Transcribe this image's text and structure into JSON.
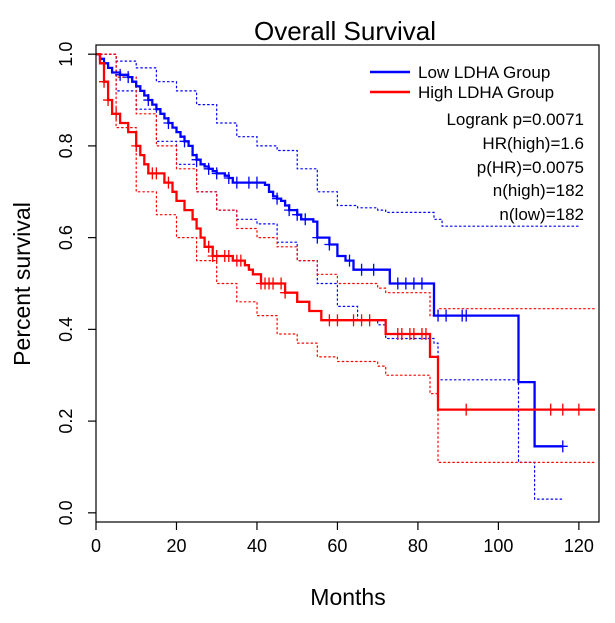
{
  "chart_data": {
    "type": "line",
    "subtype": "kaplan-meier",
    "title": "Overall Survival",
    "xlabel": "Months",
    "ylabel": "Percent survival",
    "xlim": [
      0,
      125
    ],
    "ylim": [
      -0.02,
      1.02
    ],
    "xticks": [
      0,
      20,
      40,
      60,
      80,
      100,
      120
    ],
    "yticks": [
      0.0,
      0.2,
      0.4,
      0.6,
      0.8,
      1.0
    ],
    "xtick_labels": [
      "0",
      "20",
      "40",
      "60",
      "80",
      "100",
      "120"
    ],
    "ytick_labels": [
      "0.0",
      "0.2",
      "0.4",
      "0.6",
      "0.8",
      "1.0"
    ],
    "legend_position": "top-right",
    "series": [
      {
        "name": "Low LDHA Group",
        "color": "#0000ff",
        "steps": [
          [
            0,
            1.0
          ],
          [
            1,
            0.99
          ],
          [
            2,
            0.98
          ],
          [
            3,
            0.97
          ],
          [
            4,
            0.96
          ],
          [
            6,
            0.955
          ],
          [
            8,
            0.95
          ],
          [
            9,
            0.94
          ],
          [
            10,
            0.93
          ],
          [
            11,
            0.92
          ],
          [
            12,
            0.91
          ],
          [
            13,
            0.9
          ],
          [
            14,
            0.89
          ],
          [
            15,
            0.88
          ],
          [
            16,
            0.87
          ],
          [
            17,
            0.86
          ],
          [
            18,
            0.85
          ],
          [
            19,
            0.84
          ],
          [
            20,
            0.83
          ],
          [
            21,
            0.82
          ],
          [
            22,
            0.81
          ],
          [
            23,
            0.8
          ],
          [
            24,
            0.78
          ],
          [
            25,
            0.77
          ],
          [
            26,
            0.76
          ],
          [
            27,
            0.755
          ],
          [
            28,
            0.75
          ],
          [
            29,
            0.745
          ],
          [
            30,
            0.74
          ],
          [
            32,
            0.735
          ],
          [
            33,
            0.73
          ],
          [
            34,
            0.72
          ],
          [
            38,
            0.72
          ],
          [
            42,
            0.715
          ],
          [
            43,
            0.7
          ],
          [
            44,
            0.69
          ],
          [
            45,
            0.685
          ],
          [
            46,
            0.68
          ],
          [
            47,
            0.67
          ],
          [
            48,
            0.66
          ],
          [
            50,
            0.65
          ],
          [
            51,
            0.64
          ],
          [
            54,
            0.635
          ],
          [
            55,
            0.6
          ],
          [
            58,
            0.585
          ],
          [
            60,
            0.56
          ],
          [
            62,
            0.55
          ],
          [
            64,
            0.53
          ],
          [
            72,
            0.53
          ],
          [
            73,
            0.5
          ],
          [
            83,
            0.5
          ],
          [
            84,
            0.43
          ],
          [
            99,
            0.43
          ],
          [
            105,
            0.43
          ],
          [
            105,
            0.285
          ],
          [
            109,
            0.285
          ],
          [
            109,
            0.145
          ],
          [
            116,
            0.145
          ]
        ],
        "censor_times": [
          6,
          8,
          13,
          18,
          22,
          25,
          28,
          30,
          33,
          35,
          38,
          40,
          45,
          48,
          50,
          52,
          55,
          58,
          63,
          66,
          69,
          75,
          77,
          79,
          81,
          85,
          87,
          91,
          92,
          116
        ]
      },
      {
        "name": "High LDHA Group",
        "color": "#ff0000",
        "steps": [
          [
            0,
            1.0
          ],
          [
            1,
            0.98
          ],
          [
            2,
            0.94
          ],
          [
            3,
            0.9
          ],
          [
            4,
            0.87
          ],
          [
            6,
            0.85
          ],
          [
            8,
            0.83
          ],
          [
            10,
            0.8
          ],
          [
            11,
            0.78
          ],
          [
            12,
            0.76
          ],
          [
            13,
            0.74
          ],
          [
            17,
            0.72
          ],
          [
            19,
            0.7
          ],
          [
            20,
            0.68
          ],
          [
            22,
            0.66
          ],
          [
            24,
            0.64
          ],
          [
            25,
            0.62
          ],
          [
            26,
            0.6
          ],
          [
            27,
            0.58
          ],
          [
            29,
            0.56
          ],
          [
            34,
            0.55
          ],
          [
            37,
            0.54
          ],
          [
            38,
            0.53
          ],
          [
            39,
            0.52
          ],
          [
            41,
            0.5
          ],
          [
            46,
            0.5
          ],
          [
            47,
            0.48
          ],
          [
            50,
            0.46
          ],
          [
            53,
            0.44
          ],
          [
            56,
            0.42
          ],
          [
            71,
            0.42
          ],
          [
            72,
            0.39
          ],
          [
            83,
            0.39
          ],
          [
            83,
            0.34
          ],
          [
            85,
            0.34
          ],
          [
            85,
            0.225
          ],
          [
            124,
            0.225
          ]
        ],
        "censor_times": [
          2,
          3,
          5,
          10,
          14,
          15,
          18,
          28,
          29,
          30,
          32,
          33,
          35,
          36,
          41,
          42,
          43,
          44,
          46,
          47,
          58,
          60,
          64,
          66,
          68,
          75,
          76,
          78,
          79,
          81,
          82,
          92,
          113,
          116,
          120
        ]
      }
    ],
    "confidence_bands": [
      {
        "series": "Low LDHA Group",
        "color": "#0000ff",
        "upper": [
          [
            0,
            1.0
          ],
          [
            5,
            0.985
          ],
          [
            10,
            0.97
          ],
          [
            15,
            0.94
          ],
          [
            20,
            0.92
          ],
          [
            25,
            0.89
          ],
          [
            30,
            0.85
          ],
          [
            35,
            0.82
          ],
          [
            40,
            0.8
          ],
          [
            45,
            0.79
          ],
          [
            50,
            0.75
          ],
          [
            55,
            0.7
          ],
          [
            60,
            0.67
          ],
          [
            65,
            0.665
          ],
          [
            70,
            0.66
          ],
          [
            72,
            0.655
          ],
          [
            84,
            0.64
          ],
          [
            86,
            0.625
          ],
          [
            120,
            0.625
          ]
        ],
        "lower": [
          [
            0,
            1.0
          ],
          [
            5,
            0.92
          ],
          [
            10,
            0.88
          ],
          [
            15,
            0.81
          ],
          [
            20,
            0.76
          ],
          [
            25,
            0.7
          ],
          [
            30,
            0.66
          ],
          [
            35,
            0.64
          ],
          [
            40,
            0.63
          ],
          [
            45,
            0.59
          ],
          [
            50,
            0.55
          ],
          [
            55,
            0.5
          ],
          [
            60,
            0.45
          ],
          [
            65,
            0.42
          ],
          [
            70,
            0.41
          ],
          [
            72,
            0.38
          ],
          [
            84,
            0.37
          ],
          [
            85,
            0.29
          ],
          [
            105,
            0.29
          ],
          [
            105,
            0.11
          ],
          [
            109,
            0.11
          ],
          [
            109,
            0.03
          ],
          [
            116,
            0.03
          ]
        ]
      },
      {
        "series": "High LDHA Group",
        "color": "#ff0000",
        "upper": [
          [
            0,
            1.0
          ],
          [
            5,
            0.95
          ],
          [
            10,
            0.87
          ],
          [
            15,
            0.8
          ],
          [
            20,
            0.75
          ],
          [
            25,
            0.7
          ],
          [
            30,
            0.66
          ],
          [
            35,
            0.62
          ],
          [
            40,
            0.6
          ],
          [
            45,
            0.58
          ],
          [
            50,
            0.55
          ],
          [
            55,
            0.52
          ],
          [
            60,
            0.5
          ],
          [
            70,
            0.49
          ],
          [
            72,
            0.48
          ],
          [
            83,
            0.48
          ],
          [
            83,
            0.43
          ],
          [
            85,
            0.43
          ],
          [
            85,
            0.445
          ],
          [
            124,
            0.445
          ]
        ],
        "lower": [
          [
            0,
            1.0
          ],
          [
            5,
            0.84
          ],
          [
            10,
            0.7
          ],
          [
            15,
            0.65
          ],
          [
            20,
            0.6
          ],
          [
            25,
            0.55
          ],
          [
            30,
            0.5
          ],
          [
            35,
            0.46
          ],
          [
            40,
            0.43
          ],
          [
            45,
            0.39
          ],
          [
            50,
            0.37
          ],
          [
            55,
            0.34
          ],
          [
            60,
            0.33
          ],
          [
            70,
            0.32
          ],
          [
            72,
            0.3
          ],
          [
            83,
            0.26
          ],
          [
            85,
            0.11
          ],
          [
            124,
            0.11
          ]
        ]
      }
    ],
    "annotations": [
      "Logrank p=0.0071",
      "HR(high)=1.6",
      "p(HR)=0.0075",
      "n(high)=182",
      "n(low)=182"
    ]
  }
}
